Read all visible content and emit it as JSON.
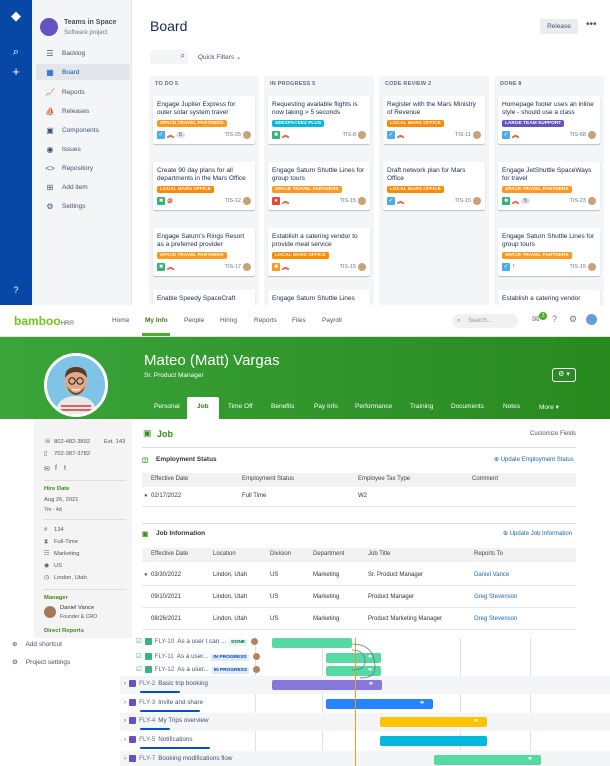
{
  "jira": {
    "project_name": "Teams in Space",
    "project_type": "Software project",
    "sidebar": [
      {
        "label": "Backlog",
        "icon": "backlog-icon",
        "glyph": "☰"
      },
      {
        "label": "Board",
        "icon": "board-icon",
        "glyph": "▦"
      },
      {
        "label": "Reports",
        "icon": "reports-icon",
        "glyph": "📈"
      },
      {
        "label": "Releases",
        "icon": "releases-icon",
        "glyph": "⛵"
      },
      {
        "label": "Components",
        "icon": "components-icon",
        "glyph": "▣"
      },
      {
        "label": "Issues",
        "icon": "issues-icon",
        "glyph": "◉"
      },
      {
        "label": "Repository",
        "icon": "repository-icon",
        "glyph": "<>"
      },
      {
        "label": "Add item",
        "icon": "add-item-icon",
        "glyph": "⊞"
      },
      {
        "label": "Settings",
        "icon": "settings-icon",
        "glyph": "⚙"
      }
    ],
    "board_title": "Board",
    "release_label": "Release",
    "more_label": "•••",
    "quick_filters": "Quick Filters ⌄",
    "columns": [
      {
        "header": "TO DO 5",
        "cards": [
          {
            "title": "Engage Jupiter Express for outer solar system travel",
            "tag": "SPACE TRAVEL PARTNERS",
            "tag_color": "#ff991f",
            "type": "task",
            "type_color": "#4bade8",
            "pri": "︽",
            "count": "5",
            "key": "TIS-25"
          },
          {
            "title": "Create 90 day plans for all departments in the Mars Office",
            "tag": "LOCAL MARS OFFICE",
            "tag_color": "#ff8b00",
            "type": "story",
            "type_color": "#36b37e",
            "pri": "⊘",
            "count": "",
            "key": "TIS-12"
          },
          {
            "title": "Engage Saturn's Rings Resort as a preferred provider",
            "tag": "SPACE TRAVEL PARTNERS",
            "tag_color": "#ff991f",
            "type": "story",
            "type_color": "#36b37e",
            "pri": "︽",
            "count": "",
            "key": "TIS-17"
          },
          {
            "title": "Enable Speedy SpaceCraft",
            "tag": "",
            "tag_color": "",
            "type": "",
            "type_color": "",
            "pri": "",
            "count": "",
            "key": ""
          }
        ]
      },
      {
        "header": "IN PROGRESS 5",
        "cards": [
          {
            "title": "Requesting available flights is now taking > 5 seconds",
            "tag": "SEESPACEEZ PLUS",
            "tag_color": "#00b8d9",
            "type": "story",
            "type_color": "#36b37e",
            "pri": "︽",
            "count": "",
            "key": "TIS-8"
          },
          {
            "title": "Engage Saturn Shuttle Lines for group tours",
            "tag": "SPACE TRAVEL PARTNERS",
            "tag_color": "#ff991f",
            "type": "bug",
            "type_color": "#e5493a",
            "pri": "︽",
            "count": "",
            "key": "TIS-15"
          },
          {
            "title": "Establish a catering vendor to provide meal service",
            "tag": "LOCAL MARS OFFICE",
            "tag_color": "#ff8b00",
            "type": "story",
            "type_color": "#ff991f",
            "pri": "︽",
            "count": "",
            "key": "TIS-15"
          },
          {
            "title": "Engage Saturn Shuttle Lines",
            "tag": "",
            "tag_color": "",
            "type": "",
            "type_color": "",
            "pri": "",
            "count": "",
            "key": ""
          }
        ]
      },
      {
        "header": "CODE REVIEW 2",
        "cards": [
          {
            "title": "Register with the Mars Ministry of Revenue",
            "tag": "LOCAL MARS OFFICE",
            "tag_color": "#ff8b00",
            "type": "task",
            "type_color": "#4bade8",
            "pri": "︽",
            "count": "",
            "key": "TIS-11"
          },
          {
            "title": "Draft network plan for Mars Office",
            "tag": "LOCAL MARS OFFICE",
            "tag_color": "#ff8b00",
            "type": "task",
            "type_color": "#4bade8",
            "pri": "︽",
            "count": "",
            "key": "TIS-15"
          }
        ]
      },
      {
        "header": "DONE 8",
        "cards": [
          {
            "title": "Homepage footer uses an inline style - should use a class",
            "tag": "LARGE TEAM SUPPORT",
            "tag_color": "#6554c0",
            "type": "task",
            "type_color": "#4bade8",
            "pri": "︽",
            "count": "",
            "key": "TIS-68"
          },
          {
            "title": "Engage JetShuttle SpaceWays for travel",
            "tag": "SPACE TRAVEL PARTNERS",
            "tag_color": "#ff991f",
            "type": "story",
            "type_color": "#36b37e",
            "pri": "︽",
            "count": "5",
            "key": "TIS-23"
          },
          {
            "title": "Engage Saturn Shuttle Lines for group tours",
            "tag": "SPACE TRAVEL PARTNERS",
            "tag_color": "#ff991f",
            "type": "task",
            "type_color": "#4bade8",
            "pri": "↑",
            "count": "",
            "key": "TIS-15"
          },
          {
            "title": "Establish a catering vendor",
            "tag": "",
            "tag_color": "",
            "type": "",
            "type_color": "",
            "pri": "",
            "count": "",
            "key": ""
          }
        ]
      }
    ]
  },
  "bamboo": {
    "logo_main": "bamboo",
    "logo_suffix": "HR®",
    "nav": [
      "Home",
      "My Info",
      "People",
      "Hiring",
      "Reports",
      "Files",
      "Payroll"
    ],
    "search_placeholder": "Search...",
    "notif_count": "2",
    "name": "Mateo (Matt) Vargas",
    "title": "Sr. Product Manager",
    "tabs": [
      "Personal",
      "Job",
      "Time Off",
      "Benefits",
      "Pay Info",
      "Performance",
      "Training",
      "Documents",
      "Notes",
      "More ▾"
    ],
    "contact": {
      "work_phone": "802-482-3892",
      "ext": "Ext. 143",
      "mobile": "702-387-3782"
    },
    "hire_date_label": "Hire Date",
    "hire_date": "Aug 26, 2021",
    "tenure": "7m - 4d",
    "emp_no": "134",
    "emp_type": "Full-Time",
    "department": "Marketing",
    "country": "US",
    "location": "Lindon, Utah",
    "manager_label": "Manager",
    "manager_name": "Daniel Vance",
    "manager_title": "Founder & CRO",
    "direct_reports": "Direct Reports",
    "page_heading": "Job",
    "customize": "Customize Fields",
    "employment_status": {
      "title": "Employment Status",
      "update": "Update Employment Status",
      "headers": [
        "Effective Date",
        "Employment Status",
        "Employee Tax Type",
        "Comment"
      ],
      "rows": [
        [
          "02/17/2022",
          "Full Time",
          "W2",
          ""
        ]
      ]
    },
    "job_info": {
      "title": "Job Information",
      "update": "Update Job Information",
      "headers": [
        "Effective Date",
        "Location",
        "Division",
        "Department",
        "Job Title",
        "Reports To"
      ],
      "rows": [
        [
          "03/30/2022",
          "Lindon, Utah",
          "US",
          "Marketing",
          "Sr. Product Manager",
          "Daniel Vance"
        ],
        [
          "09/10/2021",
          "Lindon, Utah",
          "US",
          "Marketing",
          "Product Manager",
          "Greg Stevenson"
        ],
        [
          "08/26/2021",
          "Lindon, Utah",
          "US",
          "Marketing",
          "Product Marketing Manager",
          "Greg Stevenson"
        ]
      ]
    }
  },
  "gantt": {
    "sidebar": [
      {
        "label": "Add shortcut",
        "icon": "add-shortcut-icon",
        "glyph": "⊕"
      },
      {
        "label": "Project settings",
        "icon": "settings-icon",
        "glyph": "⚙"
      }
    ],
    "rows": [
      {
        "key": "FLY-10",
        "summary": "As a user I can ...",
        "status": "DONE",
        "color": "#57d9a3"
      },
      {
        "key": "FLY-11",
        "summary": "As a user...",
        "status": "IN PROGRESS",
        "color": "#57d9a3"
      },
      {
        "key": "FLY-12",
        "summary": "As a user...",
        "status": "IN PROGRESS",
        "color": "#57d9a3"
      },
      {
        "key": "FLY-2",
        "summary": "Basic trip booking",
        "status": "",
        "color": "#8777d9"
      },
      {
        "key": "FLY-3",
        "summary": "Invite and share",
        "status": "",
        "color": "#2684ff"
      },
      {
        "key": "FLY-4",
        "summary": "My Trips overview",
        "status": "",
        "color": "#ffc400"
      },
      {
        "key": "FLY-5",
        "summary": "Notifications",
        "status": "",
        "color": "#00b8d9"
      },
      {
        "key": "FLY-7",
        "summary": "Booking modifications flow",
        "status": "",
        "color": "#57d9a3"
      }
    ]
  }
}
